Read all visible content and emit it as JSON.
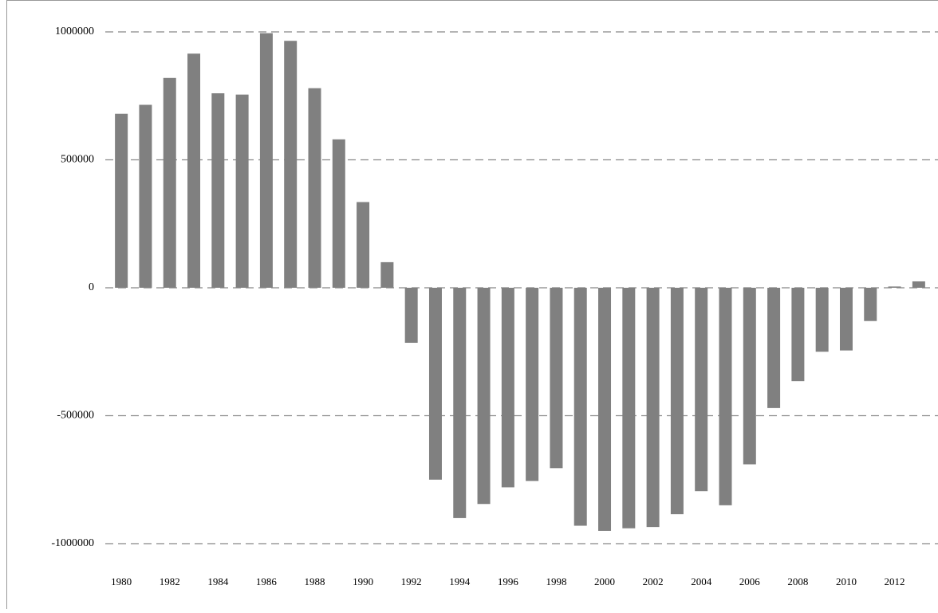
{
  "chart_data": {
    "type": "bar",
    "categories": [
      "1980",
      null,
      "1982",
      null,
      "1984",
      null,
      "1986",
      null,
      "1988",
      null,
      "1990",
      null,
      "1992",
      null,
      "1994",
      null,
      "1996",
      null,
      "1998",
      null,
      "2000",
      null,
      "2002",
      null,
      "2004",
      null,
      "2006",
      null,
      "2008",
      null,
      "2010",
      null,
      "2012",
      null
    ],
    "values": [
      680000,
      715000,
      820000,
      915000,
      760000,
      755000,
      995000,
      965000,
      780000,
      580000,
      335000,
      100000,
      -215000,
      -750000,
      -900000,
      -845000,
      -780000,
      -755000,
      -705000,
      -930000,
      -950000,
      -940000,
      -935000,
      -885000,
      -795000,
      -850000,
      -690000,
      -470000,
      -365000,
      -250000,
      -245000,
      -130000,
      5000,
      25000
    ],
    "color": "#808080",
    "ylim": [
      -1000000,
      1000000
    ],
    "yticks": [
      -1000000,
      -500000,
      0,
      500000,
      1000000
    ],
    "grid": true
  }
}
